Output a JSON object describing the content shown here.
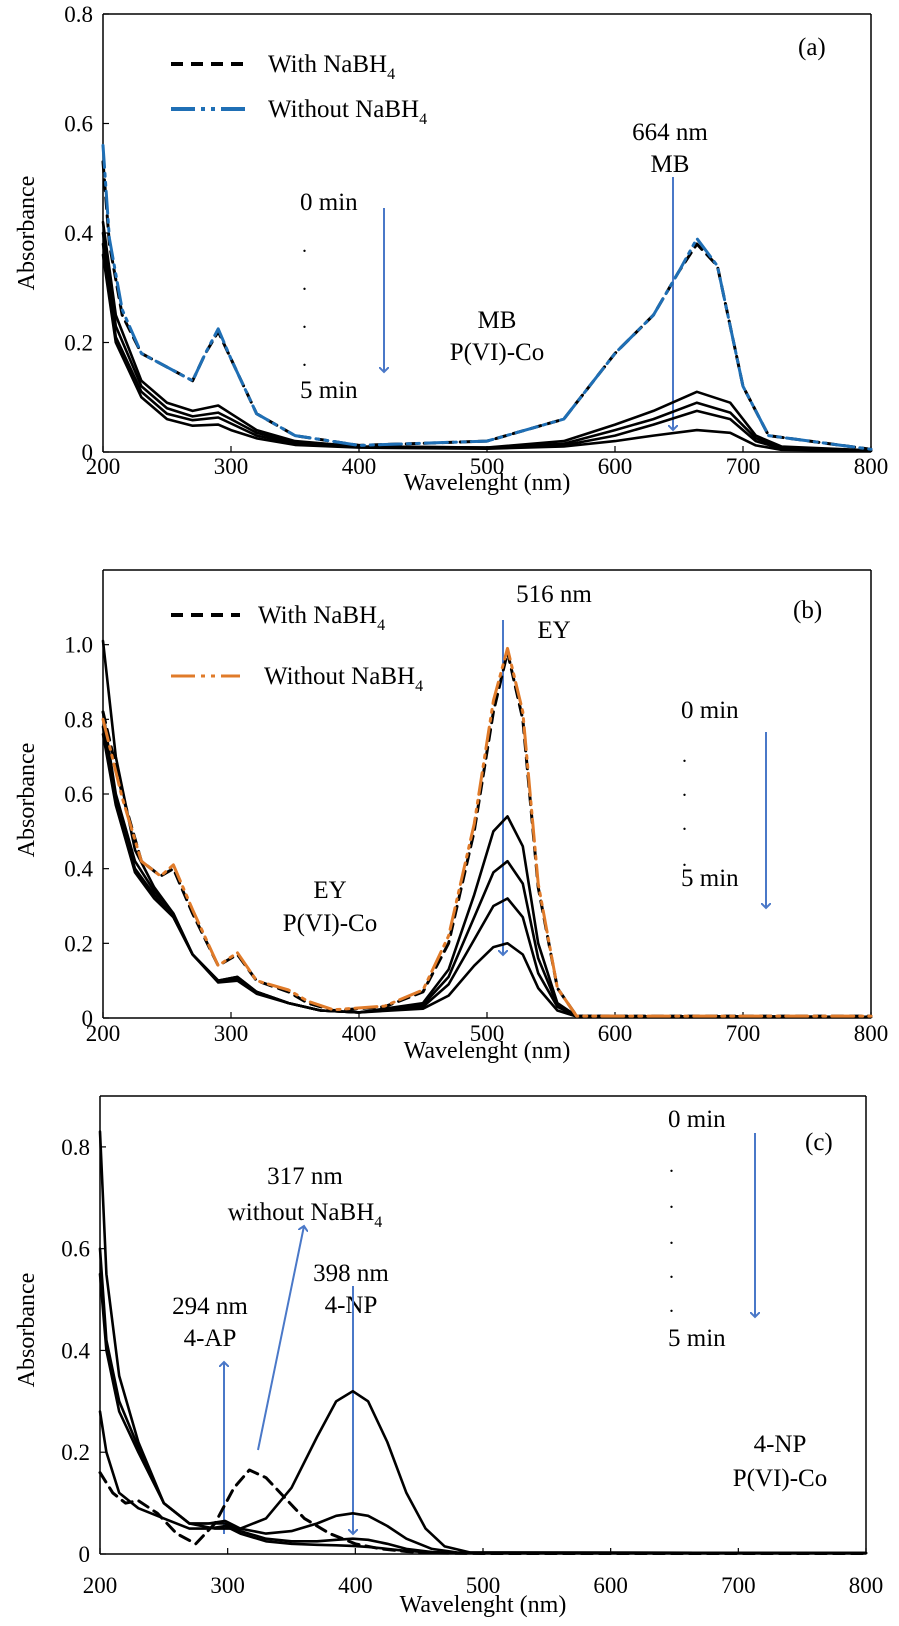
{
  "chart_data": [
    {
      "type": "line",
      "panel_label": "(a)",
      "xlabel": "Wavelenght (nm)",
      "ylabel": "Absorbance",
      "xlim": [
        200,
        800
      ],
      "ylim": [
        0,
        0.8
      ],
      "x_ticks": [
        "200",
        "300",
        "400",
        "500",
        "600",
        "700",
        "800"
      ],
      "y_ticks": [
        "0",
        "0.2",
        "0.4",
        "0.6",
        "0.8"
      ],
      "legend": [
        {
          "label": "With NaBH",
          "sub": "4",
          "style": "dashed",
          "color": "#000000"
        },
        {
          "label": "Without NaBH",
          "sub": "4",
          "style": "dashdot",
          "color": "#1f6fb5"
        }
      ],
      "annotations": {
        "peak_nm": "664 nm",
        "peak_name": "MB",
        "time_start": "0 min",
        "time_end": "5 min",
        "sample": "MB",
        "catalyst": "P(VI)-Co"
      },
      "series": [
        {
          "style": "dashed",
          "color": "#000000",
          "x": [
            200,
            205,
            215,
            230,
            250,
            270,
            280,
            290,
            300,
            320,
            350,
            400,
            500,
            560,
            600,
            630,
            650,
            664,
            680,
            700,
            720,
            800
          ],
          "y": [
            0.53,
            0.38,
            0.25,
            0.18,
            0.155,
            0.13,
            0.18,
            0.22,
            0.17,
            0.07,
            0.03,
            0.012,
            0.02,
            0.06,
            0.18,
            0.25,
            0.33,
            0.38,
            0.34,
            0.12,
            0.03,
            0.005
          ]
        },
        {
          "style": "dashdot",
          "color": "#1f6fb5",
          "x": [
            200,
            205,
            215,
            230,
            250,
            270,
            280,
            290,
            300,
            320,
            350,
            400,
            500,
            560,
            600,
            630,
            650,
            664,
            680,
            700,
            720,
            800
          ],
          "y": [
            0.56,
            0.39,
            0.26,
            0.18,
            0.155,
            0.13,
            0.18,
            0.225,
            0.17,
            0.07,
            0.03,
            0.012,
            0.02,
            0.06,
            0.18,
            0.25,
            0.33,
            0.39,
            0.34,
            0.12,
            0.03,
            0.005
          ]
        },
        {
          "style": "solid",
          "color": "#000000",
          "x": [
            200,
            210,
            230,
            250,
            270,
            290,
            300,
            320,
            350,
            400,
            500,
            560,
            600,
            630,
            664,
            690,
            710,
            730,
            800
          ],
          "y": [
            0.42,
            0.25,
            0.13,
            0.09,
            0.075,
            0.085,
            0.07,
            0.04,
            0.02,
            0.01,
            0.008,
            0.02,
            0.05,
            0.075,
            0.11,
            0.09,
            0.03,
            0.01,
            0.003
          ]
        },
        {
          "style": "solid",
          "color": "#000000",
          "x": [
            200,
            210,
            230,
            250,
            270,
            290,
            300,
            320,
            350,
            400,
            500,
            560,
            600,
            630,
            664,
            690,
            710,
            730,
            800
          ],
          "y": [
            0.4,
            0.23,
            0.12,
            0.08,
            0.065,
            0.072,
            0.06,
            0.035,
            0.018,
            0.01,
            0.008,
            0.015,
            0.04,
            0.06,
            0.09,
            0.072,
            0.025,
            0.008,
            0.003
          ]
        },
        {
          "style": "solid",
          "color": "#000000",
          "x": [
            200,
            210,
            230,
            250,
            270,
            290,
            300,
            320,
            350,
            400,
            500,
            560,
            600,
            630,
            664,
            690,
            710,
            730,
            800
          ],
          "y": [
            0.38,
            0.21,
            0.11,
            0.07,
            0.058,
            0.063,
            0.052,
            0.03,
            0.016,
            0.009,
            0.007,
            0.012,
            0.03,
            0.05,
            0.075,
            0.06,
            0.02,
            0.006,
            0.002
          ]
        },
        {
          "style": "solid",
          "color": "#000000",
          "x": [
            200,
            210,
            230,
            250,
            270,
            290,
            300,
            320,
            350,
            400,
            500,
            560,
            600,
            630,
            664,
            690,
            710,
            730,
            800
          ],
          "y": [
            0.36,
            0.2,
            0.1,
            0.06,
            0.048,
            0.05,
            0.04,
            0.025,
            0.013,
            0.008,
            0.006,
            0.01,
            0.02,
            0.03,
            0.04,
            0.035,
            0.012,
            0.004,
            0.002
          ]
        }
      ]
    },
    {
      "type": "line",
      "panel_label": "(b)",
      "xlabel": "Wavelenght (nm)",
      "ylabel": "Absorbance",
      "xlim": [
        200,
        800
      ],
      "ylim": [
        0,
        1.2
      ],
      "x_ticks": [
        "200",
        "300",
        "400",
        "500",
        "600",
        "700",
        "800"
      ],
      "y_ticks": [
        "0",
        "0.2",
        "0.4",
        "0.6",
        "0.8",
        "1.0"
      ],
      "legend": [
        {
          "label": "With NaBH",
          "sub": "4",
          "style": "dashed",
          "color": "#000000"
        },
        {
          "label": "Without NaBH",
          "sub": "4",
          "style": "dashdot",
          "color": "#e07b2a"
        }
      ],
      "annotations": {
        "peak_nm": "516 nm",
        "peak_name": "EY",
        "time_start": "0 min",
        "time_end": "5 min",
        "sample": "EY",
        "catalyst": "P(VI)-Co"
      },
      "series": [
        {
          "style": "dashed",
          "color": "#000000",
          "x": [
            200,
            215,
            230,
            245,
            255,
            270,
            290,
            305,
            320,
            345,
            360,
            380,
            420,
            450,
            470,
            490,
            505,
            516,
            528,
            540,
            555,
            570,
            800
          ],
          "y": [
            0.82,
            0.6,
            0.42,
            0.38,
            0.4,
            0.28,
            0.14,
            0.17,
            0.1,
            0.07,
            0.04,
            0.02,
            0.03,
            0.07,
            0.2,
            0.5,
            0.82,
            0.98,
            0.8,
            0.35,
            0.08,
            0.005,
            0.005
          ]
        },
        {
          "style": "dashdot",
          "color": "#e07b2a",
          "x": [
            200,
            215,
            230,
            245,
            255,
            270,
            290,
            305,
            320,
            345,
            360,
            380,
            420,
            450,
            470,
            490,
            505,
            516,
            528,
            540,
            555,
            570,
            800
          ],
          "y": [
            0.8,
            0.59,
            0.42,
            0.38,
            0.41,
            0.29,
            0.14,
            0.175,
            0.1,
            0.075,
            0.045,
            0.022,
            0.032,
            0.075,
            0.22,
            0.52,
            0.85,
            0.99,
            0.82,
            0.36,
            0.08,
            0.005,
            0.005
          ]
        },
        {
          "style": "solid",
          "color": "#000000",
          "x": [
            200,
            210,
            225,
            240,
            255,
            270,
            290,
            305,
            320,
            345,
            370,
            400,
            450,
            470,
            490,
            505,
            516,
            528,
            540,
            555,
            570,
            800
          ],
          "y": [
            1.01,
            0.7,
            0.45,
            0.35,
            0.28,
            0.17,
            0.1,
            0.11,
            0.07,
            0.04,
            0.02,
            0.015,
            0.04,
            0.13,
            0.33,
            0.5,
            0.54,
            0.46,
            0.2,
            0.04,
            0.005,
            0.003
          ]
        },
        {
          "style": "solid",
          "color": "#000000",
          "x": [
            200,
            210,
            225,
            240,
            255,
            270,
            290,
            305,
            320,
            345,
            370,
            400,
            450,
            470,
            490,
            505,
            516,
            528,
            540,
            555,
            570,
            800
          ],
          "y": [
            0.82,
            0.6,
            0.42,
            0.34,
            0.28,
            0.17,
            0.1,
            0.11,
            0.07,
            0.04,
            0.02,
            0.015,
            0.035,
            0.11,
            0.27,
            0.39,
            0.42,
            0.36,
            0.16,
            0.035,
            0.005,
            0.003
          ]
        },
        {
          "style": "solid",
          "color": "#000000",
          "x": [
            200,
            210,
            225,
            240,
            255,
            270,
            290,
            305,
            320,
            345,
            370,
            400,
            450,
            470,
            490,
            505,
            516,
            528,
            540,
            555,
            570,
            800
          ],
          "y": [
            0.78,
            0.58,
            0.4,
            0.33,
            0.27,
            0.17,
            0.1,
            0.105,
            0.07,
            0.04,
            0.02,
            0.015,
            0.03,
            0.09,
            0.21,
            0.3,
            0.32,
            0.27,
            0.12,
            0.03,
            0.005,
            0.003
          ]
        },
        {
          "style": "solid",
          "color": "#000000",
          "x": [
            200,
            210,
            225,
            240,
            255,
            270,
            290,
            305,
            320,
            345,
            370,
            400,
            450,
            470,
            490,
            505,
            516,
            528,
            540,
            555,
            570,
            800
          ],
          "y": [
            0.76,
            0.57,
            0.39,
            0.32,
            0.27,
            0.17,
            0.095,
            0.1,
            0.065,
            0.04,
            0.02,
            0.015,
            0.025,
            0.06,
            0.14,
            0.19,
            0.2,
            0.17,
            0.08,
            0.02,
            0.004,
            0.003
          ]
        }
      ]
    },
    {
      "type": "line",
      "panel_label": "(c)",
      "xlabel": "Wavelenght (nm)",
      "ylabel": "Absorbance",
      "xlim": [
        200,
        800
      ],
      "ylim": [
        0,
        0.9
      ],
      "x_ticks": [
        "200",
        "300",
        "400",
        "500",
        "600",
        "700",
        "800"
      ],
      "y_ticks": [
        "0",
        "0.2",
        "0.4",
        "0.6",
        "0.8"
      ],
      "annotations": {
        "peak1_nm": "317 nm",
        "peak1_name": "without NaBH",
        "peak1_sub": "4",
        "peak2_nm": "398 nm",
        "peak2_name": "4-NP",
        "peak3_nm": "294 nm",
        "peak3_name": "4-AP",
        "time_start": "0 min",
        "time_end": "5 min",
        "sample": "4-NP",
        "catalyst": "P(VI)-Co"
      },
      "series": [
        {
          "style": "dashed",
          "color": "#000000",
          "x": [
            200,
            210,
            220,
            230,
            245,
            260,
            275,
            290,
            305,
            317,
            330,
            345,
            360,
            380,
            400,
            420,
            440,
            460,
            500,
            800
          ],
          "y": [
            0.16,
            0.12,
            0.1,
            0.105,
            0.08,
            0.04,
            0.02,
            0.06,
            0.13,
            0.165,
            0.15,
            0.11,
            0.07,
            0.04,
            0.02,
            0.01,
            0.005,
            0.002,
            0.001,
            0.001
          ]
        },
        {
          "style": "solid",
          "color": "#000000",
          "x": [
            200,
            205,
            215,
            230,
            250,
            270,
            290,
            310,
            330,
            350,
            370,
            385,
            398,
            410,
            425,
            440,
            455,
            470,
            490,
            800
          ],
          "y": [
            0.83,
            0.55,
            0.35,
            0.22,
            0.1,
            0.06,
            0.05,
            0.05,
            0.07,
            0.13,
            0.23,
            0.3,
            0.32,
            0.3,
            0.22,
            0.12,
            0.05,
            0.015,
            0.003,
            0.002
          ]
        },
        {
          "style": "solid",
          "color": "#000000",
          "x": [
            200,
            205,
            215,
            230,
            250,
            270,
            285,
            298,
            310,
            330,
            350,
            370,
            385,
            398,
            410,
            425,
            440,
            460,
            480,
            800
          ],
          "y": [
            0.6,
            0.42,
            0.3,
            0.21,
            0.1,
            0.06,
            0.06,
            0.065,
            0.05,
            0.04,
            0.045,
            0.06,
            0.075,
            0.08,
            0.075,
            0.055,
            0.03,
            0.01,
            0.003,
            0.002
          ]
        },
        {
          "style": "solid",
          "color": "#000000",
          "x": [
            200,
            205,
            215,
            230,
            250,
            270,
            285,
            298,
            310,
            330,
            350,
            370,
            385,
            398,
            410,
            425,
            440,
            460,
            480,
            800
          ],
          "y": [
            0.55,
            0.4,
            0.28,
            0.2,
            0.1,
            0.06,
            0.06,
            0.06,
            0.045,
            0.03,
            0.025,
            0.025,
            0.028,
            0.03,
            0.028,
            0.02,
            0.01,
            0.004,
            0.002,
            0.002
          ]
        },
        {
          "style": "solid",
          "color": "#000000",
          "x": [
            200,
            205,
            215,
            230,
            250,
            270,
            285,
            298,
            310,
            330,
            350,
            370,
            385,
            398,
            410,
            425,
            440,
            460,
            480,
            800
          ],
          "y": [
            0.28,
            0.2,
            0.12,
            0.09,
            0.07,
            0.05,
            0.05,
            0.055,
            0.04,
            0.025,
            0.02,
            0.018,
            0.017,
            0.016,
            0.014,
            0.01,
            0.006,
            0.003,
            0.002,
            0.002
          ]
        }
      ]
    }
  ]
}
